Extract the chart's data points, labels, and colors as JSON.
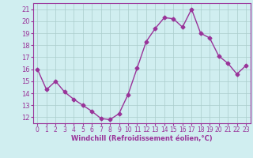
{
  "x": [
    0,
    1,
    2,
    3,
    4,
    5,
    6,
    7,
    8,
    9,
    10,
    11,
    12,
    13,
    14,
    15,
    16,
    17,
    18,
    19,
    20,
    21,
    22,
    23
  ],
  "y": [
    16.0,
    14.3,
    15.0,
    14.1,
    13.5,
    13.0,
    12.5,
    11.9,
    11.8,
    12.3,
    13.9,
    16.1,
    18.3,
    19.4,
    20.3,
    20.2,
    19.5,
    21.0,
    19.0,
    18.6,
    17.1,
    16.5,
    15.6,
    16.3
  ],
  "line_color": "#993399",
  "marker": "D",
  "marker_size": 2.5,
  "bg_color": "#d0eef0",
  "grid_color": "#aacccc",
  "xlabel": "Windchill (Refroidissement éolien,°C)",
  "xlabel_color": "#993399",
  "tick_color": "#993399",
  "ylim": [
    11.5,
    21.5
  ],
  "yticks": [
    12,
    13,
    14,
    15,
    16,
    17,
    18,
    19,
    20,
    21
  ],
  "xlim": [
    -0.5,
    23.5
  ],
  "xticks": [
    0,
    1,
    2,
    3,
    4,
    5,
    6,
    7,
    8,
    9,
    10,
    11,
    12,
    13,
    14,
    15,
    16,
    17,
    18,
    19,
    20,
    21,
    22,
    23
  ]
}
